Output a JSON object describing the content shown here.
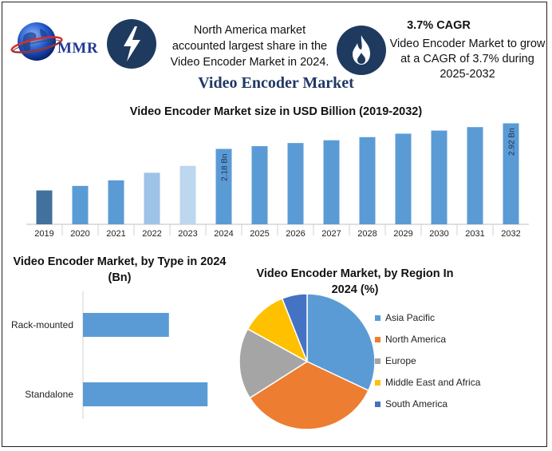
{
  "header": {
    "brand": "MMR",
    "highlight_share": "North America market accounted largest share in the Video Encoder Market in 2024.",
    "cagr_value": "3.7% CAGR",
    "cagr_text": "Video Encoder Market to grow at a CAGR of 3.7% during 2025-2032",
    "icons": [
      "globe-logo-icon",
      "lightning-bolt-icon",
      "flame-icon"
    ]
  },
  "main_title": "Video Encoder Market",
  "colors": {
    "bar_main": "#5b9bd5",
    "bar_dark": "#41719c",
    "bar_light": "#9dc3e6",
    "bar_lighter": "#bdd7ee",
    "pie": [
      "#5b9bd5",
      "#ed7d31",
      "#a5a5a5",
      "#ffc000",
      "#4472c4"
    ]
  },
  "chart_data": [
    {
      "type": "bar",
      "title": "Video Encoder Market size in USD Billion (2019-2032)",
      "categories": [
        "2019",
        "2020",
        "2021",
        "2022",
        "2023",
        "2024",
        "2025",
        "2026",
        "2027",
        "2028",
        "2029",
        "2030",
        "2031",
        "2032"
      ],
      "values": [
        0.98,
        1.11,
        1.27,
        1.49,
        1.69,
        2.18,
        2.26,
        2.35,
        2.43,
        2.52,
        2.62,
        2.71,
        2.81,
        2.92
      ],
      "data_labels": {
        "2024": "2.18 Bn",
        "2032": "2.92 Bn"
      },
      "ylim": [
        0,
        3.0
      ],
      "xlabel": "",
      "ylabel": "",
      "grid": false
    },
    {
      "type": "bar",
      "orientation": "horizontal",
      "title": "Video Encoder Market, by Type in 2024 (Bn)",
      "categories": [
        "Rack-mounted",
        "Standalone"
      ],
      "values": [
        0.89,
        1.29
      ],
      "xlim": [
        0,
        1.8
      ],
      "grid": false
    },
    {
      "type": "pie",
      "title": "Video Encoder Market, by Region In 2024 (%)",
      "labels": [
        "Asia Pacific",
        "North America",
        "Europe",
        "Middle East and Africa",
        "South America"
      ],
      "values": [
        32,
        34,
        17,
        11,
        6
      ],
      "legend": "right"
    }
  ]
}
